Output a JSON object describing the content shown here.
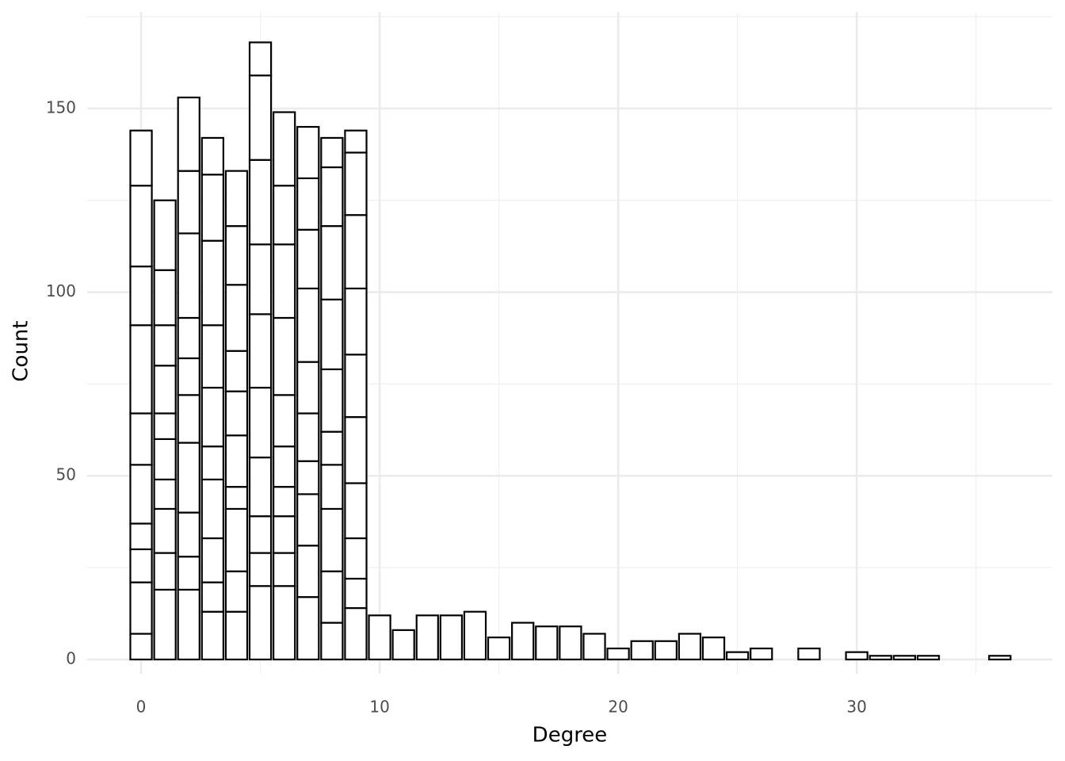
{
  "chart_data": {
    "type": "histogram",
    "xlabel": "Degree",
    "ylabel": "Count",
    "bins": [
      -0.5,
      0.5,
      1.5,
      2.5,
      3.5,
      4.5,
      5.5,
      6.5,
      7.5,
      8.5,
      9.5,
      10.5,
      11.5,
      12.5,
      13.5,
      14.5,
      15.5,
      16.5,
      17.5,
      18.5,
      19.5,
      20.5,
      21.5,
      22.5,
      23.5,
      24.5,
      25.5,
      26.5,
      27.5,
      28.5,
      29.5,
      30.5,
      31.5,
      32.5,
      33.5,
      34.5,
      35.5,
      36.5
    ],
    "series": [
      {
        "values": [
          7,
          19,
          19,
          13,
          13,
          20,
          20,
          17,
          10,
          14,
          12,
          8,
          12,
          12,
          13,
          6,
          10,
          9,
          9,
          7,
          3,
          5,
          5,
          7,
          6,
          2,
          3,
          0,
          3,
          0,
          2,
          1,
          1,
          1,
          0,
          0,
          1
        ]
      },
      {
        "values": [
          14,
          10,
          9,
          8,
          11,
          9,
          9,
          14,
          14,
          8,
          0,
          0,
          0,
          0,
          0,
          0,
          0,
          0,
          0,
          0,
          0,
          0,
          0,
          0,
          0,
          0,
          0,
          0,
          0,
          0,
          0,
          0,
          0,
          0,
          0,
          0,
          0
        ]
      },
      {
        "values": [
          9,
          12,
          12,
          12,
          17,
          10,
          10,
          14,
          17,
          11,
          0,
          0,
          0,
          0,
          0,
          0,
          0,
          0,
          0,
          0,
          0,
          0,
          0,
          0,
          0,
          0,
          0,
          0,
          0,
          0,
          0,
          0,
          0,
          0,
          0,
          0,
          0
        ]
      },
      {
        "values": [
          7,
          8,
          19,
          16,
          6,
          16,
          8,
          9,
          12,
          15,
          0,
          0,
          0,
          0,
          0,
          0,
          0,
          0,
          0,
          0,
          0,
          0,
          0,
          0,
          0,
          0,
          0,
          0,
          0,
          0,
          0,
          0,
          0,
          0,
          0,
          0,
          0
        ]
      },
      {
        "values": [
          16,
          11,
          13,
          9,
          14,
          19,
          11,
          13,
          9,
          18,
          0,
          0,
          0,
          0,
          0,
          0,
          0,
          0,
          0,
          0,
          0,
          0,
          0,
          0,
          0,
          0,
          0,
          0,
          0,
          0,
          0,
          0,
          0,
          0,
          0,
          0,
          0
        ]
      },
      {
        "values": [
          14,
          7,
          10,
          16,
          12,
          20,
          14,
          14,
          17,
          17,
          0,
          0,
          0,
          0,
          0,
          0,
          0,
          0,
          0,
          0,
          0,
          0,
          0,
          0,
          0,
          0,
          0,
          0,
          0,
          0,
          0,
          0,
          0,
          0,
          0,
          0,
          0
        ]
      },
      {
        "values": [
          24,
          13,
          11,
          17,
          11,
          19,
          21,
          20,
          19,
          18,
          0,
          0,
          0,
          0,
          0,
          0,
          0,
          0,
          0,
          0,
          0,
          0,
          0,
          0,
          0,
          0,
          0,
          0,
          0,
          0,
          0,
          0,
          0,
          0,
          0,
          0,
          0
        ]
      },
      {
        "values": [
          16,
          11,
          23,
          23,
          18,
          23,
          20,
          16,
          20,
          20,
          0,
          0,
          0,
          0,
          0,
          0,
          0,
          0,
          0,
          0,
          0,
          0,
          0,
          0,
          0,
          0,
          0,
          0,
          0,
          0,
          0,
          0,
          0,
          0,
          0,
          0,
          0
        ]
      },
      {
        "values": [
          22,
          15,
          17,
          18,
          16,
          23,
          16,
          14,
          16,
          17,
          0,
          0,
          0,
          0,
          0,
          0,
          0,
          0,
          0,
          0,
          0,
          0,
          0,
          0,
          0,
          0,
          0,
          0,
          0,
          0,
          0,
          0,
          0,
          0,
          0,
          0,
          0
        ]
      },
      {
        "values": [
          15,
          19,
          20,
          10,
          15,
          9,
          20,
          14,
          8,
          6,
          0,
          0,
          0,
          0,
          0,
          0,
          0,
          0,
          0,
          0,
          0,
          0,
          0,
          0,
          0,
          0,
          0,
          0,
          0,
          0,
          0,
          0,
          0,
          0,
          0,
          0,
          0
        ]
      }
    ],
    "color": "#ffffff",
    "edge_color": "#000000",
    "xlim": [
      -2.26,
      38.2
    ],
    "ylim": [
      -3.9,
      176.3
    ],
    "xticks": [
      0,
      10,
      20,
      30
    ],
    "yticks": [
      0,
      50,
      100,
      150
    ],
    "xminor": [
      5,
      15,
      25,
      35
    ],
    "yminor": [
      25,
      75,
      125,
      175
    ],
    "grid": true
  }
}
